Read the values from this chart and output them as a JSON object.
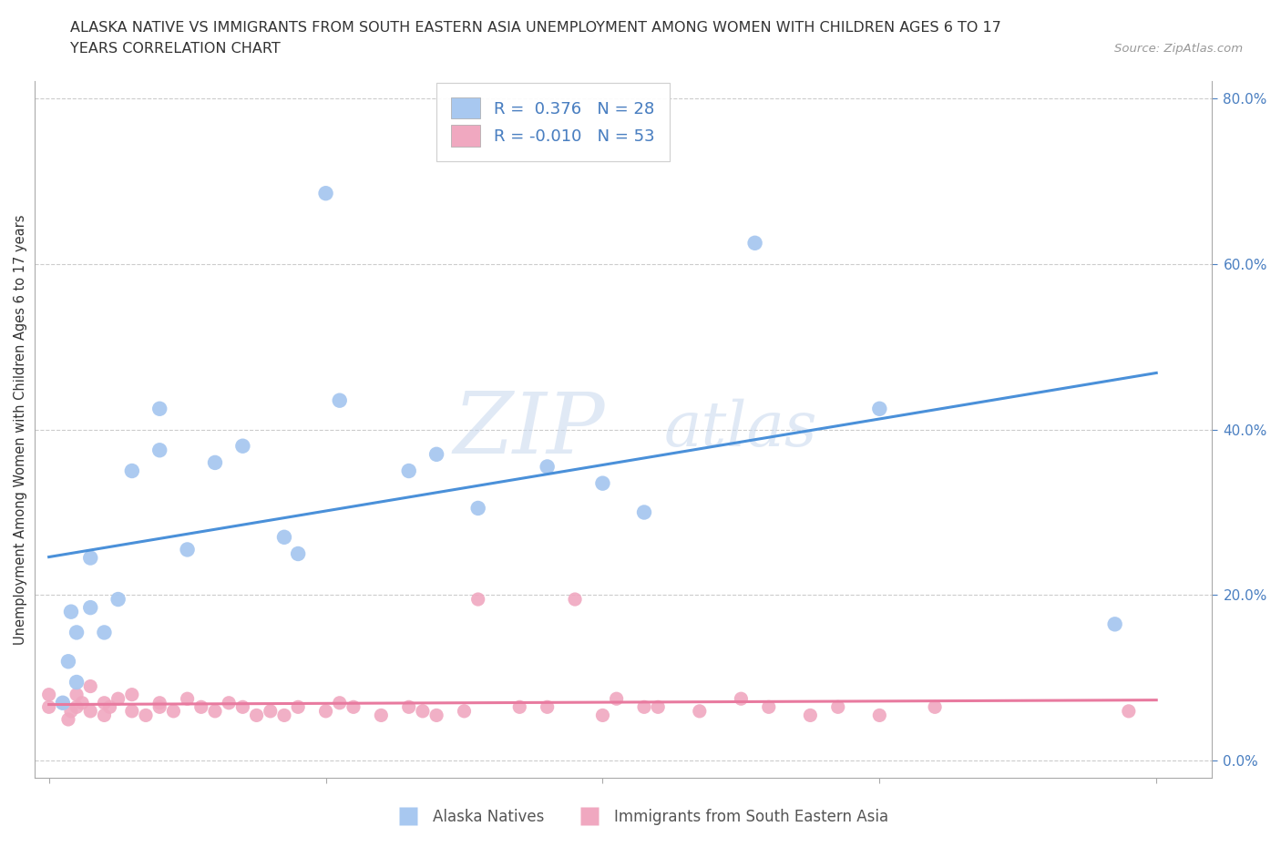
{
  "title_line1": "ALASKA NATIVE VS IMMIGRANTS FROM SOUTH EASTERN ASIA UNEMPLOYMENT AMONG WOMEN WITH CHILDREN AGES 6 TO 17",
  "title_line2": "YEARS CORRELATION CHART",
  "source": "Source: ZipAtlas.com",
  "ylabel": "Unemployment Among Women with Children Ages 6 to 17 years",
  "xlim": [
    -0.005,
    0.42
  ],
  "ylim": [
    -0.02,
    0.82
  ],
  "xtick_vals": [
    0.0,
    0.1,
    0.2,
    0.3,
    0.4
  ],
  "ytick_vals": [
    0.0,
    0.2,
    0.4,
    0.6,
    0.8
  ],
  "alaska_R": 0.376,
  "alaska_N": 28,
  "sea_R": -0.01,
  "sea_N": 53,
  "alaska_color": "#a8c8f0",
  "sea_color": "#f0a8c0",
  "alaska_line_color": "#4a90d9",
  "sea_line_color": "#e87a9f",
  "watermark_top": "ZIP",
  "watermark_bot": "atlas",
  "legend_label_alaska": "Alaska Natives",
  "legend_label_sea": "Immigrants from South Eastern Asia",
  "alaska_x": [
    0.005,
    0.007,
    0.008,
    0.01,
    0.01,
    0.015,
    0.015,
    0.02,
    0.025,
    0.03,
    0.04,
    0.04,
    0.05,
    0.06,
    0.07,
    0.085,
    0.09,
    0.1,
    0.105,
    0.13,
    0.14,
    0.155,
    0.18,
    0.2,
    0.215,
    0.255,
    0.3,
    0.385
  ],
  "alaska_y": [
    0.07,
    0.12,
    0.18,
    0.095,
    0.155,
    0.185,
    0.245,
    0.155,
    0.195,
    0.35,
    0.375,
    0.425,
    0.255,
    0.36,
    0.38,
    0.27,
    0.25,
    0.685,
    0.435,
    0.35,
    0.37,
    0.305,
    0.355,
    0.335,
    0.3,
    0.625,
    0.425,
    0.165
  ],
  "sea_x": [
    0.0,
    0.0,
    0.005,
    0.007,
    0.008,
    0.01,
    0.01,
    0.012,
    0.015,
    0.015,
    0.02,
    0.02,
    0.022,
    0.025,
    0.03,
    0.03,
    0.035,
    0.04,
    0.04,
    0.045,
    0.05,
    0.055,
    0.06,
    0.065,
    0.07,
    0.075,
    0.08,
    0.085,
    0.09,
    0.1,
    0.105,
    0.11,
    0.12,
    0.13,
    0.135,
    0.14,
    0.15,
    0.155,
    0.17,
    0.18,
    0.19,
    0.2,
    0.205,
    0.215,
    0.22,
    0.235,
    0.25,
    0.26,
    0.275,
    0.285,
    0.3,
    0.32,
    0.39
  ],
  "sea_y": [
    0.065,
    0.08,
    0.07,
    0.05,
    0.06,
    0.065,
    0.08,
    0.07,
    0.06,
    0.09,
    0.07,
    0.055,
    0.065,
    0.075,
    0.06,
    0.08,
    0.055,
    0.07,
    0.065,
    0.06,
    0.075,
    0.065,
    0.06,
    0.07,
    0.065,
    0.055,
    0.06,
    0.055,
    0.065,
    0.06,
    0.07,
    0.065,
    0.055,
    0.065,
    0.06,
    0.055,
    0.06,
    0.195,
    0.065,
    0.065,
    0.195,
    0.055,
    0.075,
    0.065,
    0.065,
    0.06,
    0.075,
    0.065,
    0.055,
    0.065,
    0.055,
    0.065,
    0.06
  ]
}
